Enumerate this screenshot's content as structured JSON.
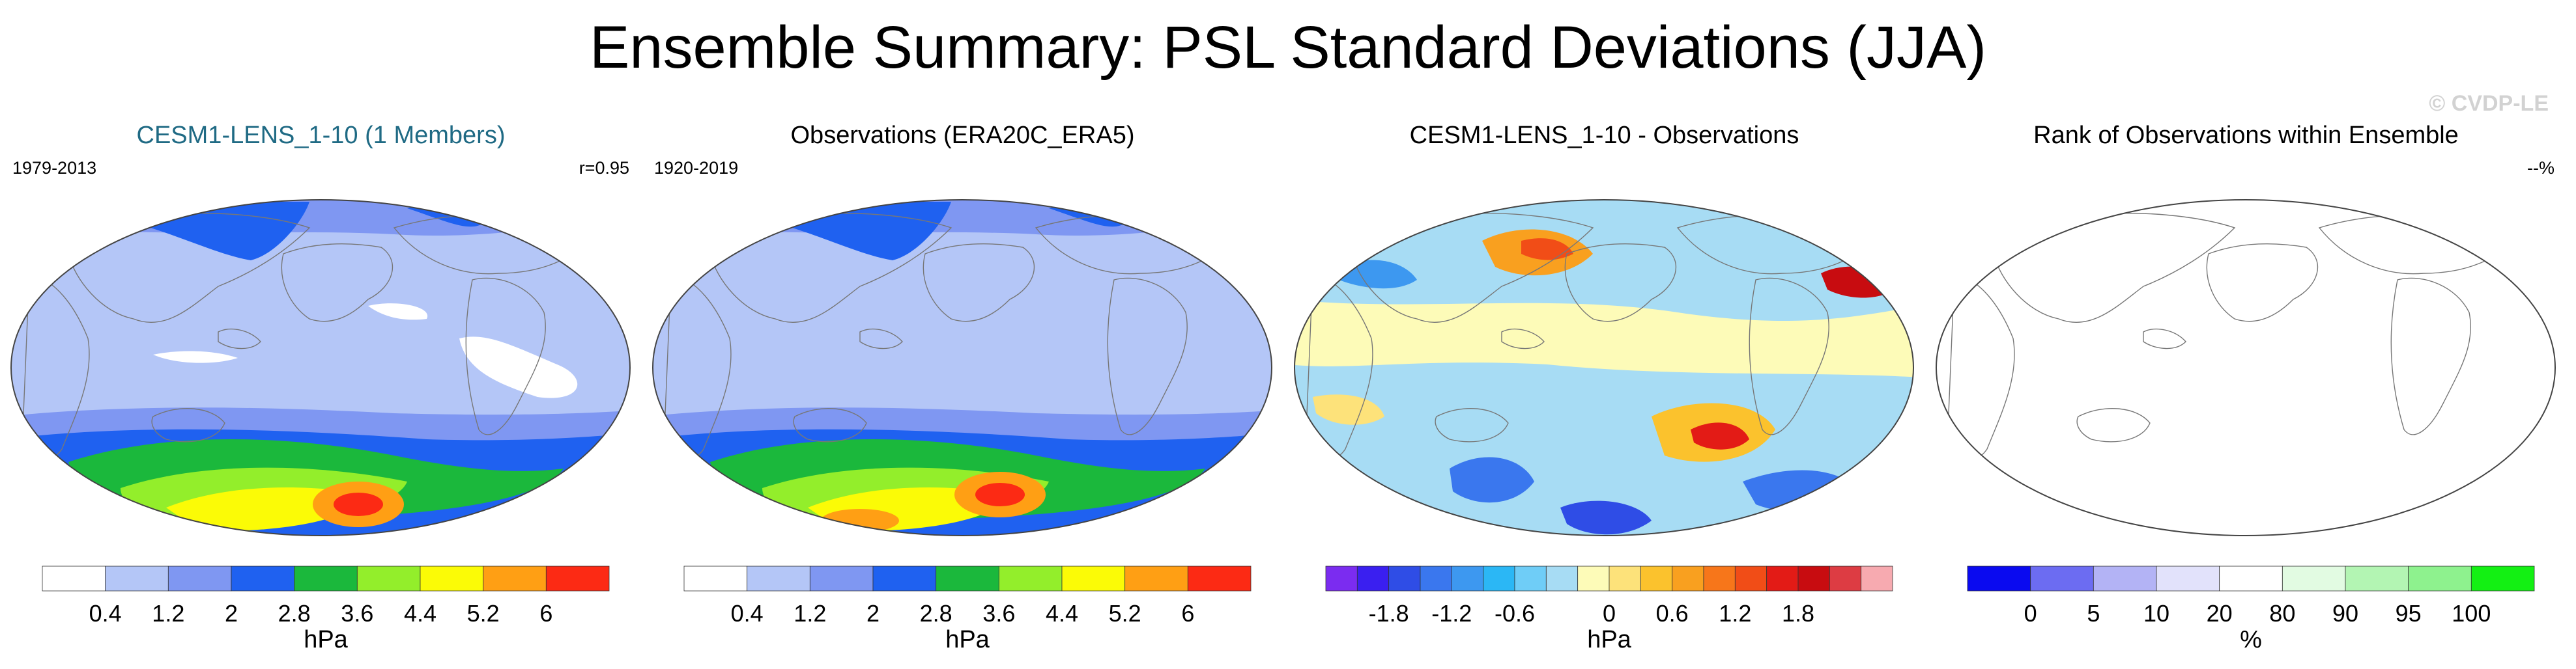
{
  "title": "Ensemble Summary: PSL Standard Deviations (JJA)",
  "credit": "© CVDP-LE",
  "panels": [
    {
      "title": "CESM1-LENS_1-10 (1 Members)",
      "title_color": "#1f6a84",
      "left_label": "1979-2013",
      "right_label": "r=0.95",
      "map_kind": "model",
      "colorbar": {
        "colors": [
          "#ffffff",
          "#b4c6f7",
          "#7f97f2",
          "#1f61f0",
          "#1bb83c",
          "#93ee2b",
          "#fbfb06",
          "#ff9f14",
          "#fc2a14"
        ],
        "labels": [
          "0.4",
          "1.2",
          "2",
          "2.8",
          "3.6",
          "4.4",
          "5.2",
          "6"
        ],
        "unit": "hPa"
      }
    },
    {
      "title": "Observations (ERA20C_ERA5)",
      "title_color": "#000000",
      "left_label": "1920-2019",
      "right_label": "",
      "map_kind": "obs",
      "colorbar": {
        "colors": [
          "#ffffff",
          "#b4c6f7",
          "#7f97f2",
          "#1f61f0",
          "#1bb83c",
          "#93ee2b",
          "#fbfb06",
          "#ff9f14",
          "#fc2a14"
        ],
        "labels": [
          "0.4",
          "1.2",
          "2",
          "2.8",
          "3.6",
          "4.4",
          "5.2",
          "6"
        ],
        "unit": "hPa"
      }
    },
    {
      "title": "CESM1-LENS_1-10 - Observations",
      "title_color": "#000000",
      "left_label": "",
      "right_label": "",
      "map_kind": "diff",
      "colorbar": {
        "colors": [
          "#7b2cf0",
          "#3a1ff0",
          "#2f4de6",
          "#3a77ee",
          "#3d98f0",
          "#2bb7f5",
          "#6fcdf7",
          "#a7dcf4",
          "#fdfbb8",
          "#fde27a",
          "#fbc22d",
          "#f9a01f",
          "#f7761a",
          "#f14d17",
          "#e31b16",
          "#c80c10",
          "#dd3c43",
          "#f7aab0"
        ],
        "labels": [
          "-1.8",
          "-1.2",
          "-0.6",
          "0",
          "0.6",
          "1.2",
          "1.8"
        ],
        "unit": "hPa"
      }
    },
    {
      "title": "Rank of Observations within Ensemble",
      "title_color": "#000000",
      "left_label": "",
      "right_label": "--%",
      "map_kind": "rank",
      "colorbar": {
        "colors": [
          "#0a0af0",
          "#6c6cf2",
          "#b3b3f5",
          "#e2e2fb",
          "#ffffff",
          "#e2fbe2",
          "#b3f5b3",
          "#8ef28e",
          "#13f013"
        ],
        "labels": [
          "0",
          "5",
          "10",
          "20",
          "80",
          "90",
          "95",
          "100"
        ],
        "unit": "%"
      }
    }
  ]
}
